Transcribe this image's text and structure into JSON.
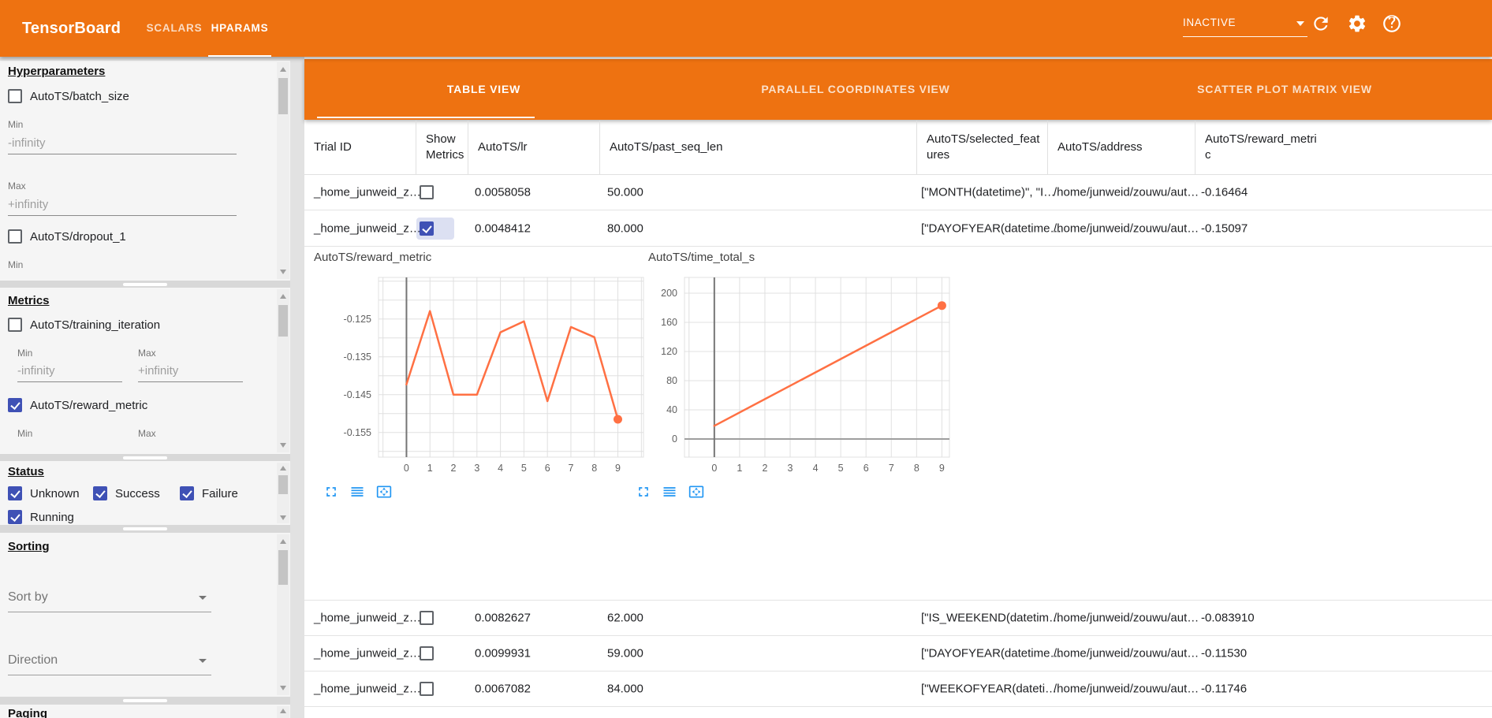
{
  "top_bar": {
    "title": "TensorBoard",
    "nav_tabs": [
      {
        "label": "SCALARS",
        "active": false
      },
      {
        "label": "HPARAMS",
        "active": true
      }
    ],
    "status_dropdown": {
      "value": "INACTIVE"
    },
    "icons": [
      "refresh-icon",
      "settings-icon",
      "help-icon"
    ]
  },
  "view_tabs": [
    {
      "label": "TABLE VIEW",
      "active": true
    },
    {
      "label": "PARALLEL COORDINATES VIEW",
      "active": false
    },
    {
      "label": "SCATTER PLOT MATRIX VIEW",
      "active": false
    }
  ],
  "sidebar": {
    "hyperparameters": {
      "title": "Hyperparameters",
      "min_label": "Min",
      "max_label": "Max",
      "min_value": "-infinity",
      "max_value": "+infinity",
      "items": [
        {
          "label": "AutoTS/batch_size",
          "checked": false
        },
        {
          "label": "AutoTS/dropout_1",
          "checked": false
        }
      ]
    },
    "metrics": {
      "title": "Metrics",
      "min_label": "Min",
      "max_label": "Max",
      "min_value": "-infinity",
      "max_value": "+infinity",
      "items": [
        {
          "label": "AutoTS/training_iteration",
          "checked": false
        },
        {
          "label": "AutoTS/reward_metric",
          "checked": true
        }
      ]
    },
    "status": {
      "title": "Status",
      "items": [
        {
          "label": "Unknown",
          "checked": true
        },
        {
          "label": "Success",
          "checked": true
        },
        {
          "label": "Failure",
          "checked": true
        },
        {
          "label": "Running",
          "checked": true
        }
      ]
    },
    "sorting": {
      "title": "Sorting",
      "sort_by_placeholder": "Sort by",
      "direction_placeholder": "Direction"
    },
    "paging": {
      "title": "Paging"
    }
  },
  "table": {
    "columns": [
      "Trial ID",
      "Show Metrics",
      "AutoTS/lr",
      "AutoTS/past_seq_len",
      "AutoTS/selected_features",
      "AutoTS/address",
      "AutoTS/reward_metric"
    ],
    "rows": [
      {
        "trial_id": "_home_junweid_z…",
        "show_metrics": false,
        "lr": "0.0058058",
        "past_seq_len": "50.000",
        "selected_features": "[\"MONTH(datetime)\", \"I…",
        "address": "/home/junweid/zouwu/aut…",
        "reward_metric": "-0.16464"
      },
      {
        "trial_id": "_home_junweid_z…",
        "show_metrics": true,
        "lr": "0.0048412",
        "past_seq_len": "80.000",
        "selected_features": "[\"DAYOFYEAR(datetime…",
        "address": "/home/junweid/zouwu/aut…",
        "reward_metric": "-0.15097"
      },
      {
        "trial_id": "_home_junweid_z…",
        "show_metrics": false,
        "lr": "0.0082627",
        "past_seq_len": "62.000",
        "selected_features": "[\"IS_WEEKEND(datetim…",
        "address": "/home/junweid/zouwu/aut…",
        "reward_metric": "-0.083910"
      },
      {
        "trial_id": "_home_junweid_z…",
        "show_metrics": false,
        "lr": "0.0099931",
        "past_seq_len": "59.000",
        "selected_features": "[\"DAYOFYEAR(datetime…",
        "address": "/home/junweid/zouwu/aut…",
        "reward_metric": "-0.11530"
      },
      {
        "trial_id": "_home_junweid_z…",
        "show_metrics": false,
        "lr": "0.0067082",
        "past_seq_len": "84.000",
        "selected_features": "[\"WEEKOFYEAR(dateti…",
        "address": "/home/junweid/zouwu/aut…",
        "reward_metric": "-0.11746"
      }
    ]
  },
  "chart_toolbar_icons": [
    "fullscreen-icon",
    "log-lines-icon",
    "reset-view-overscan-icon"
  ],
  "chart_data": [
    {
      "type": "line",
      "title": "AutoTS/reward_metric",
      "x": [
        0,
        1,
        2,
        3,
        4,
        5,
        6,
        7,
        8,
        9
      ],
      "values": [
        -0.1423,
        -0.1229,
        -0.145,
        -0.145,
        -0.1285,
        -0.1256,
        -0.1467,
        -0.1271,
        -0.1298,
        -0.1515
      ],
      "xlim": [
        -1.19,
        10.09
      ],
      "ylim": [
        -0.1615,
        -0.114
      ],
      "y_grid_step": 0.005,
      "y_ticks": [
        {
          "v": -0.125,
          "label": "-0.125"
        },
        {
          "v": -0.135,
          "label": "-0.135"
        },
        {
          "v": -0.145,
          "label": "-0.145"
        },
        {
          "v": -0.155,
          "label": "-0.155"
        }
      ],
      "x_ticks": [
        0,
        1,
        2,
        3,
        4,
        5,
        6,
        7,
        8,
        9
      ],
      "line_color": "#ff7043",
      "marker_last": true,
      "baseline": null,
      "grid": true,
      "legend": "none"
    },
    {
      "type": "line",
      "title": "AutoTS/time_total_s",
      "x": [
        0,
        9
      ],
      "values": [
        18,
        183
      ],
      "xlim": [
        -1.18,
        9.3
      ],
      "ylim": [
        -24.9,
        221.6
      ],
      "y_grid_step": 40,
      "y_ticks": [
        {
          "v": 200,
          "label": "200"
        },
        {
          "v": 160,
          "label": "160"
        },
        {
          "v": 120,
          "label": "120"
        },
        {
          "v": 80,
          "label": "80"
        },
        {
          "v": 40,
          "label": "40"
        },
        {
          "v": 0,
          "label": "0"
        }
      ],
      "x_ticks": [
        0,
        1,
        2,
        3,
        4,
        5,
        6,
        7,
        8,
        9
      ],
      "line_color": "#ff7043",
      "marker_last": true,
      "baseline": 0,
      "grid": true,
      "legend": "none"
    }
  ]
}
